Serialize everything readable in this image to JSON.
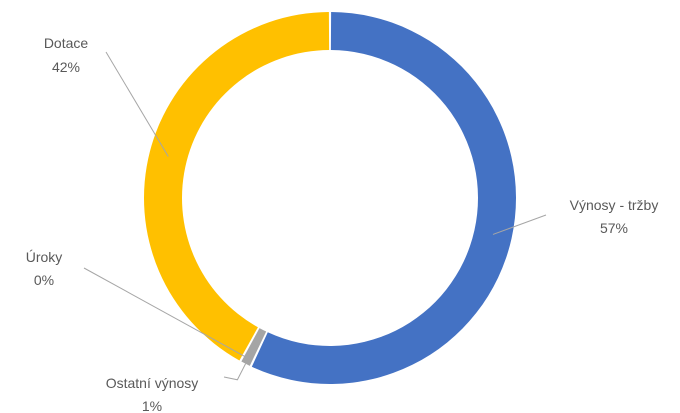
{
  "chart_data": {
    "type": "pie",
    "style": "doughnut",
    "slices": [
      {
        "label": "Výnosy - tržby",
        "value": 57,
        "display": "57%",
        "color": "#4472c4"
      },
      {
        "label": "Ostatní výnosy",
        "value": 1,
        "display": "1%",
        "color": "#a5a5a5"
      },
      {
        "label": "Úroky",
        "value": 0,
        "display": "0%",
        "color": "#ed7d31"
      },
      {
        "label": "Dotace",
        "value": 42,
        "display": "42%",
        "color": "#ffc000"
      }
    ],
    "legend": "none",
    "data_labels": "outside with leader lines"
  }
}
